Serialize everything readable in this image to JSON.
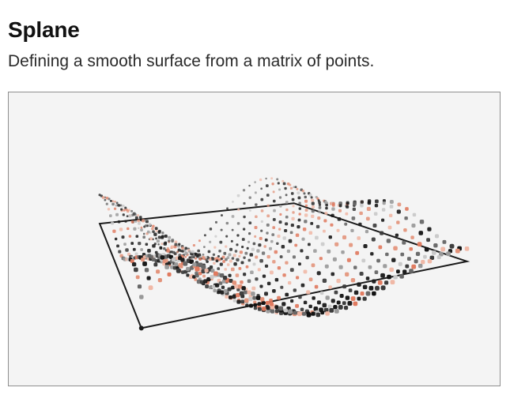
{
  "header": {
    "title": "Splane",
    "subtitle": "Defining a smooth surface from a matrix of points."
  },
  "viewer": {
    "background_color": "#f4f4f4",
    "border_color": "#8f8f8f",
    "frame_color": "#1a1a1a",
    "point_colors": [
      "#111111",
      "#1a1a1a",
      "#3a3a3a",
      "#666666",
      "#999999",
      "#c8c8c8",
      "#e07a5f",
      "#e3937a",
      "#f0b8a6"
    ],
    "grid_rows": 24,
    "grid_cols": 36,
    "surface_type": "sinusoidal wave surface",
    "bounding_frame": "parallelogram"
  }
}
